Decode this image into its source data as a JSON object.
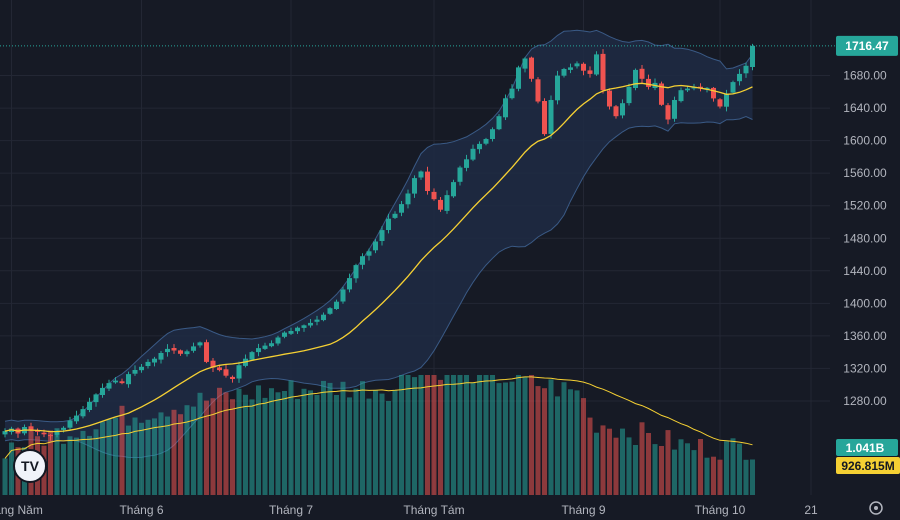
{
  "chart_data": {
    "type": "candlestick",
    "title": "",
    "y_axis": {
      "ticks": [
        1280,
        1320,
        1360,
        1400,
        1440,
        1480,
        1520,
        1560,
        1600,
        1640,
        1680
      ],
      "tick_labels": [
        "1280.00",
        "1320.00",
        "1360.00",
        "1400.00",
        "1440.00",
        "1480.00",
        "1520.00",
        "1560.00",
        "1600.00",
        "1640.00",
        "1680.00"
      ],
      "range": [
        1232,
        1736
      ]
    },
    "x_axis": {
      "labels": [
        {
          "text": "Tháng Năm",
          "index": 1
        },
        {
          "text": "Tháng 6",
          "index": 21
        },
        {
          "text": "Tháng 7",
          "index": 44
        },
        {
          "text": "Tháng Tám",
          "index": 66
        },
        {
          "text": "Tháng 9",
          "index": 89
        },
        {
          "text": "Tháng 10",
          "index": 110
        },
        {
          "text": "21",
          "index": 124
        }
      ]
    },
    "last_price_label": "1716.47",
    "volume_label": "1.041B",
    "volume_ma_label": "926.815M",
    "closes": [
      1243,
      1246,
      1240,
      1248,
      1244,
      1242,
      1239,
      1237,
      1243,
      1247,
      1256,
      1262,
      1270,
      1279,
      1288,
      1296,
      1302,
      1305,
      1302,
      1313,
      1318,
      1322,
      1328,
      1332,
      1339,
      1344,
      1342,
      1338,
      1341,
      1347,
      1352,
      1328,
      1321,
      1318,
      1311,
      1307,
      1324,
      1332,
      1340,
      1345,
      1348,
      1351,
      1358,
      1364,
      1366,
      1370,
      1373,
      1376,
      1380,
      1386,
      1394,
      1402,
      1417,
      1431,
      1447,
      1458,
      1464,
      1476,
      1490,
      1504,
      1510,
      1522,
      1535,
      1554,
      1562,
      1538,
      1528,
      1515,
      1533,
      1549,
      1567,
      1577,
      1590,
      1596,
      1602,
      1614,
      1630,
      1652,
      1664,
      1690,
      1701,
      1676,
      1648,
      1608,
      1650,
      1680,
      1688,
      1690,
      1695,
      1686,
      1682,
      1706,
      1662,
      1642,
      1630,
      1646,
      1666,
      1687,
      1676,
      1666,
      1671,
      1644,
      1626,
      1650,
      1662,
      1664,
      1666,
      1664,
      1665,
      1652,
      1642,
      1658,
      1672,
      1682,
      1692,
      1716.47
    ],
    "colors": {
      "up": "#26a69a",
      "down": "#ef5350",
      "ma": "#f5d033",
      "band": "#1f2b44",
      "band_line": "#3a5a86",
      "background": "#161a25",
      "price_tag": "#26a69a",
      "volume_ma_tag": "#f5d033"
    }
  },
  "logo": {
    "icon": "tradingview-logo-icon"
  },
  "settings": {
    "icon": "gear-icon"
  }
}
